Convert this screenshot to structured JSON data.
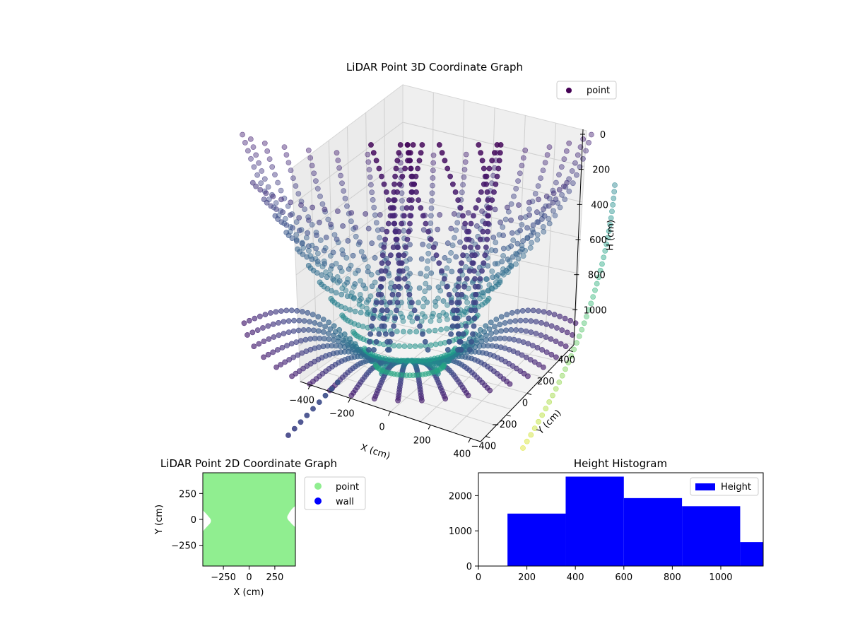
{
  "chart_data": [
    {
      "type": "scatter3d",
      "title": "LiDAR Point 3D Coordinate Graph",
      "xlabel": "X (cm)",
      "ylabel": "Y (cm)",
      "zlabel": "H (cm)",
      "x_ticks": [
        -400,
        -200,
        0,
        200,
        400
      ],
      "y_ticks": [
        -400,
        -200,
        0,
        200,
        400
      ],
      "z_ticks": [
        0,
        200,
        400,
        600,
        800,
        1000
      ],
      "z_tick_labels": [
        "0",
        "200",
        "400",
        "600",
        "800",
        "1000"
      ],
      "z_inverted": true,
      "colormap": "viridis",
      "legend": [
        {
          "name": "point",
          "color": "#440154"
        }
      ],
      "legend_position": "top-right",
      "grid": true
    },
    {
      "type": "scatter",
      "title": "LiDAR Point 2D Coordinate Graph",
      "xlabel": "X (cm)",
      "ylabel": "Y (cm)",
      "xlim": [
        -450,
        450
      ],
      "ylim": [
        -450,
        450
      ],
      "x_ticks": [
        -250,
        0,
        250
      ],
      "x_tick_labels": [
        "−250",
        "0",
        "250"
      ],
      "y_ticks": [
        -250,
        0,
        250
      ],
      "y_tick_labels": [
        "−250",
        "0",
        "250"
      ],
      "series": [
        {
          "name": "point",
          "color": "#90ee90"
        },
        {
          "name": "wall",
          "color": "#0000ff"
        }
      ],
      "legend_position": "outside-right"
    },
    {
      "type": "bar",
      "title": "Height Histogram",
      "bins": [
        {
          "start": 120,
          "end": 360,
          "count": 1490
        },
        {
          "start": 360,
          "end": 600,
          "count": 2540
        },
        {
          "start": 600,
          "end": 840,
          "count": 1930
        },
        {
          "start": 840,
          "end": 1080,
          "count": 1700
        },
        {
          "start": 1080,
          "end": 1200,
          "count": 680
        }
      ],
      "xlim": [
        0,
        1175
      ],
      "ylim": [
        0,
        2650
      ],
      "x_ticks": [
        0,
        200,
        400,
        600,
        800,
        1000
      ],
      "y_ticks": [
        0,
        1000,
        2000
      ],
      "color": "#0000ff",
      "series": [
        {
          "name": "Height",
          "color": "#0000ff"
        }
      ],
      "legend_position": "top-right"
    }
  ]
}
